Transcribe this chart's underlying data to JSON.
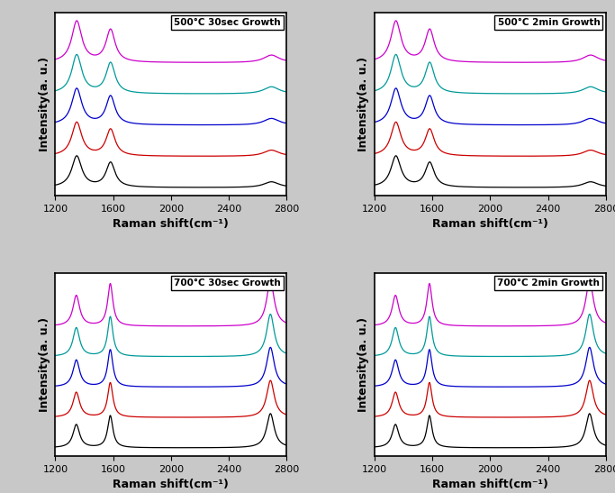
{
  "panels": [
    {
      "title": "500°C 30sec Growth",
      "temp": 500,
      "time": "30sec"
    },
    {
      "title": "500°C 2min Growth",
      "temp": 500,
      "time": "2min"
    },
    {
      "title": "700°C 30sec Growth",
      "temp": 700,
      "time": "30sec"
    },
    {
      "title": "700°C 2min Growth",
      "temp": 700,
      "time": "2min"
    }
  ],
  "spec_colors": [
    "black",
    "#cc0000",
    "#0000cc",
    "#0066cc",
    "#008080",
    "#cc00cc"
  ],
  "xlabel": "Raman shift(cm⁻¹)",
  "ylabel": "Intensity(a. u.)",
  "xmin": 1200,
  "xmax": 2800,
  "xticks": [
    1200,
    1600,
    2000,
    2400,
    2800
  ],
  "fig_bg": "#c8c8c8",
  "ax_bg": "white"
}
